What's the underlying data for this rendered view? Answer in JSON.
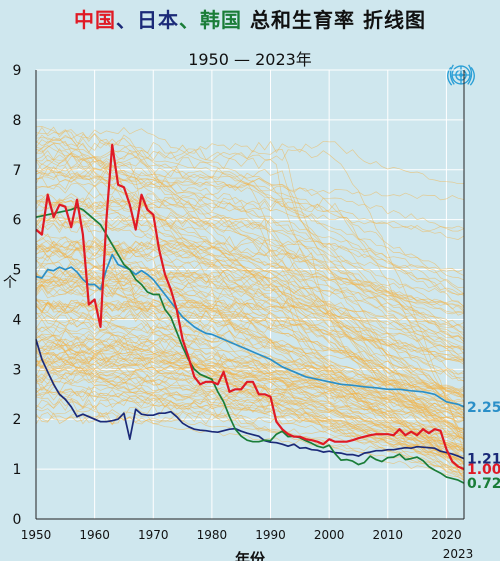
{
  "title": {
    "part_china": "中国",
    "sep1": "、",
    "part_japan": "日本",
    "sep2": "、",
    "part_korea": "韩国",
    "rest": " 总和生育率 折线图"
  },
  "subtitle": "1950 — 2023年",
  "colors": {
    "background": "#cfe7ee",
    "china": "#e01a25",
    "japan": "#1b2a78",
    "korea": "#1a7d38",
    "world": "#2a8fc8",
    "others": "#f2b347",
    "title_rest": "#111111",
    "un_logo": "#2a9fd6"
  },
  "icons": {
    "logo": "un-emblem-icon"
  },
  "chart_data": {
    "type": "line",
    "xlabel": "年份",
    "ylabel": "个",
    "xlim": [
      1950,
      2023
    ],
    "ylim": [
      0,
      9
    ],
    "xticks": [
      "1950",
      "1960",
      "1970",
      "1980",
      "1990",
      "2000",
      "2010",
      "2020"
    ],
    "yticks": [
      "0",
      "1",
      "2",
      "3",
      "4",
      "5",
      "6",
      "7",
      "8",
      "9"
    ],
    "last_year_label": "2023",
    "grid": true,
    "series": [
      {
        "key": "china",
        "color": "#e01a25",
        "end_label": "1.00",
        "points": [
          [
            1950,
            5.8
          ],
          [
            1951,
            5.7
          ],
          [
            1952,
            6.5
          ],
          [
            1953,
            6.05
          ],
          [
            1954,
            6.3
          ],
          [
            1955,
            6.26
          ],
          [
            1956,
            5.85
          ],
          [
            1957,
            6.4
          ],
          [
            1958,
            5.7
          ],
          [
            1959,
            4.3
          ],
          [
            1960,
            4.4
          ],
          [
            1961,
            3.85
          ],
          [
            1962,
            6.0
          ],
          [
            1963,
            7.5
          ],
          [
            1964,
            6.7
          ],
          [
            1965,
            6.65
          ],
          [
            1966,
            6.3
          ],
          [
            1967,
            5.8
          ],
          [
            1968,
            6.5
          ],
          [
            1969,
            6.2
          ],
          [
            1970,
            6.1
          ],
          [
            1971,
            5.4
          ],
          [
            1972,
            4.9
          ],
          [
            1973,
            4.6
          ],
          [
            1974,
            4.2
          ],
          [
            1975,
            3.6
          ],
          [
            1976,
            3.25
          ],
          [
            1977,
            2.85
          ],
          [
            1978,
            2.7
          ],
          [
            1979,
            2.75
          ],
          [
            1980,
            2.75
          ],
          [
            1981,
            2.7
          ],
          [
            1982,
            2.95
          ],
          [
            1983,
            2.55
          ],
          [
            1984,
            2.6
          ],
          [
            1985,
            2.6
          ],
          [
            1986,
            2.75
          ],
          [
            1987,
            2.75
          ],
          [
            1988,
            2.5
          ],
          [
            1989,
            2.5
          ],
          [
            1990,
            2.45
          ],
          [
            1991,
            1.95
          ],
          [
            1992,
            1.8
          ],
          [
            1993,
            1.7
          ],
          [
            1994,
            1.65
          ],
          [
            1995,
            1.65
          ],
          [
            1996,
            1.6
          ],
          [
            1997,
            1.58
          ],
          [
            1998,
            1.55
          ],
          [
            1999,
            1.5
          ],
          [
            2000,
            1.6
          ],
          [
            2001,
            1.55
          ],
          [
            2002,
            1.55
          ],
          [
            2003,
            1.55
          ],
          [
            2004,
            1.58
          ],
          [
            2005,
            1.62
          ],
          [
            2006,
            1.65
          ],
          [
            2007,
            1.68
          ],
          [
            2008,
            1.7
          ],
          [
            2009,
            1.7
          ],
          [
            2010,
            1.7
          ],
          [
            2011,
            1.68
          ],
          [
            2012,
            1.8
          ],
          [
            2013,
            1.68
          ],
          [
            2014,
            1.75
          ],
          [
            2015,
            1.68
          ],
          [
            2016,
            1.8
          ],
          [
            2017,
            1.72
          ],
          [
            2018,
            1.8
          ],
          [
            2019,
            1.77
          ],
          [
            2020,
            1.4
          ],
          [
            2021,
            1.15
          ],
          [
            2022,
            1.05
          ],
          [
            2023,
            1.0
          ]
        ]
      },
      {
        "key": "world",
        "color": "#2a8fc8",
        "end_label": "2.25",
        "points": [
          [
            1950,
            4.86
          ],
          [
            1951,
            4.83
          ],
          [
            1952,
            5.0
          ],
          [
            1953,
            4.98
          ],
          [
            1954,
            5.05
          ],
          [
            1955,
            5.0
          ],
          [
            1956,
            5.05
          ],
          [
            1957,
            4.95
          ],
          [
            1958,
            4.8
          ],
          [
            1959,
            4.7
          ],
          [
            1960,
            4.7
          ],
          [
            1961,
            4.6
          ],
          [
            1962,
            5.0
          ],
          [
            1963,
            5.3
          ],
          [
            1964,
            5.1
          ],
          [
            1965,
            5.05
          ],
          [
            1966,
            5.0
          ],
          [
            1967,
            4.9
          ],
          [
            1968,
            4.98
          ],
          [
            1969,
            4.9
          ],
          [
            1970,
            4.8
          ],
          [
            1971,
            4.65
          ],
          [
            1972,
            4.5
          ],
          [
            1973,
            4.35
          ],
          [
            1974,
            4.2
          ],
          [
            1975,
            4.05
          ],
          [
            1976,
            3.95
          ],
          [
            1977,
            3.85
          ],
          [
            1978,
            3.78
          ],
          [
            1979,
            3.72
          ],
          [
            1980,
            3.7
          ],
          [
            1981,
            3.65
          ],
          [
            1982,
            3.6
          ],
          [
            1983,
            3.55
          ],
          [
            1984,
            3.5
          ],
          [
            1985,
            3.45
          ],
          [
            1986,
            3.4
          ],
          [
            1987,
            3.35
          ],
          [
            1988,
            3.3
          ],
          [
            1989,
            3.25
          ],
          [
            1990,
            3.2
          ],
          [
            1992,
            3.05
          ],
          [
            1994,
            2.95
          ],
          [
            1996,
            2.85
          ],
          [
            1998,
            2.8
          ],
          [
            2000,
            2.75
          ],
          [
            2002,
            2.7
          ],
          [
            2004,
            2.68
          ],
          [
            2006,
            2.65
          ],
          [
            2008,
            2.63
          ],
          [
            2010,
            2.6
          ],
          [
            2012,
            2.6
          ],
          [
            2014,
            2.57
          ],
          [
            2016,
            2.55
          ],
          [
            2018,
            2.5
          ],
          [
            2020,
            2.35
          ],
          [
            2022,
            2.3
          ],
          [
            2023,
            2.25
          ]
        ]
      },
      {
        "key": "japan",
        "color": "#1b2a78",
        "end_label": "1.21",
        "points": [
          [
            1950,
            3.6
          ],
          [
            1951,
            3.2
          ],
          [
            1952,
            2.95
          ],
          [
            1953,
            2.7
          ],
          [
            1954,
            2.5
          ],
          [
            1955,
            2.4
          ],
          [
            1956,
            2.25
          ],
          [
            1957,
            2.05
          ],
          [
            1958,
            2.1
          ],
          [
            1959,
            2.05
          ],
          [
            1960,
            2.0
          ],
          [
            1961,
            1.95
          ],
          [
            1962,
            1.95
          ],
          [
            1963,
            1.97
          ],
          [
            1964,
            2.0
          ],
          [
            1965,
            2.12
          ],
          [
            1966,
            1.6
          ],
          [
            1967,
            2.2
          ],
          [
            1968,
            2.1
          ],
          [
            1969,
            2.08
          ],
          [
            1970,
            2.08
          ],
          [
            1971,
            2.12
          ],
          [
            1972,
            2.12
          ],
          [
            1973,
            2.15
          ],
          [
            1974,
            2.05
          ],
          [
            1975,
            1.92
          ],
          [
            1976,
            1.85
          ],
          [
            1977,
            1.8
          ],
          [
            1978,
            1.78
          ],
          [
            1979,
            1.77
          ],
          [
            1980,
            1.75
          ],
          [
            1981,
            1.74
          ],
          [
            1982,
            1.77
          ],
          [
            1983,
            1.8
          ],
          [
            1984,
            1.81
          ],
          [
            1985,
            1.76
          ],
          [
            1986,
            1.72
          ],
          [
            1987,
            1.69
          ],
          [
            1988,
            1.66
          ],
          [
            1989,
            1.57
          ],
          [
            1990,
            1.54
          ],
          [
            1991,
            1.53
          ],
          [
            1992,
            1.5
          ],
          [
            1993,
            1.46
          ],
          [
            1994,
            1.5
          ],
          [
            1995,
            1.42
          ],
          [
            1996,
            1.43
          ],
          [
            1997,
            1.39
          ],
          [
            1998,
            1.38
          ],
          [
            1999,
            1.34
          ],
          [
            2000,
            1.36
          ],
          [
            2001,
            1.33
          ],
          [
            2002,
            1.32
          ],
          [
            2003,
            1.29
          ],
          [
            2004,
            1.29
          ],
          [
            2005,
            1.26
          ],
          [
            2006,
            1.32
          ],
          [
            2007,
            1.34
          ],
          [
            2008,
            1.37
          ],
          [
            2009,
            1.37
          ],
          [
            2010,
            1.39
          ],
          [
            2011,
            1.39
          ],
          [
            2012,
            1.41
          ],
          [
            2013,
            1.43
          ],
          [
            2014,
            1.42
          ],
          [
            2015,
            1.45
          ],
          [
            2016,
            1.44
          ],
          [
            2017,
            1.43
          ],
          [
            2018,
            1.42
          ],
          [
            2019,
            1.36
          ],
          [
            2020,
            1.33
          ],
          [
            2021,
            1.3
          ],
          [
            2022,
            1.26
          ],
          [
            2023,
            1.21
          ]
        ]
      },
      {
        "key": "korea",
        "color": "#1a7d38",
        "end_label": "0.72",
        "points": [
          [
            1950,
            6.05
          ],
          [
            1952,
            6.1
          ],
          [
            1954,
            6.15
          ],
          [
            1956,
            6.2
          ],
          [
            1957,
            6.25
          ],
          [
            1958,
            6.2
          ],
          [
            1959,
            6.1
          ],
          [
            1960,
            6.0
          ],
          [
            1961,
            5.9
          ],
          [
            1962,
            5.7
          ],
          [
            1963,
            5.5
          ],
          [
            1964,
            5.3
          ],
          [
            1965,
            5.1
          ],
          [
            1966,
            5.0
          ],
          [
            1967,
            4.8
          ],
          [
            1968,
            4.7
          ],
          [
            1969,
            4.55
          ],
          [
            1970,
            4.5
          ],
          [
            1971,
            4.5
          ],
          [
            1972,
            4.2
          ],
          [
            1973,
            4.05
          ],
          [
            1974,
            3.75
          ],
          [
            1975,
            3.45
          ],
          [
            1976,
            3.2
          ],
          [
            1977,
            3.0
          ],
          [
            1978,
            2.9
          ],
          [
            1979,
            2.85
          ],
          [
            1980,
            2.8
          ],
          [
            1981,
            2.55
          ],
          [
            1982,
            2.35
          ],
          [
            1983,
            2.05
          ],
          [
            1984,
            1.8
          ],
          [
            1985,
            1.66
          ],
          [
            1986,
            1.58
          ],
          [
            1987,
            1.55
          ],
          [
            1988,
            1.55
          ],
          [
            1989,
            1.58
          ],
          [
            1990,
            1.57
          ],
          [
            1991,
            1.7
          ],
          [
            1992,
            1.76
          ],
          [
            1993,
            1.65
          ],
          [
            1994,
            1.66
          ],
          [
            1995,
            1.63
          ],
          [
            1996,
            1.57
          ],
          [
            1997,
            1.52
          ],
          [
            1998,
            1.46
          ],
          [
            1999,
            1.43
          ],
          [
            2000,
            1.48
          ],
          [
            2001,
            1.31
          ],
          [
            2002,
            1.18
          ],
          [
            2003,
            1.19
          ],
          [
            2004,
            1.16
          ],
          [
            2005,
            1.09
          ],
          [
            2006,
            1.13
          ],
          [
            2007,
            1.26
          ],
          [
            2008,
            1.19
          ],
          [
            2009,
            1.15
          ],
          [
            2010,
            1.23
          ],
          [
            2011,
            1.24
          ],
          [
            2012,
            1.3
          ],
          [
            2013,
            1.19
          ],
          [
            2014,
            1.21
          ],
          [
            2015,
            1.24
          ],
          [
            2016,
            1.17
          ],
          [
            2017,
            1.05
          ],
          [
            2018,
            0.98
          ],
          [
            2019,
            0.92
          ],
          [
            2020,
            0.84
          ],
          [
            2021,
            0.81
          ],
          [
            2022,
            0.78
          ],
          [
            2023,
            0.72
          ]
        ]
      }
    ]
  }
}
